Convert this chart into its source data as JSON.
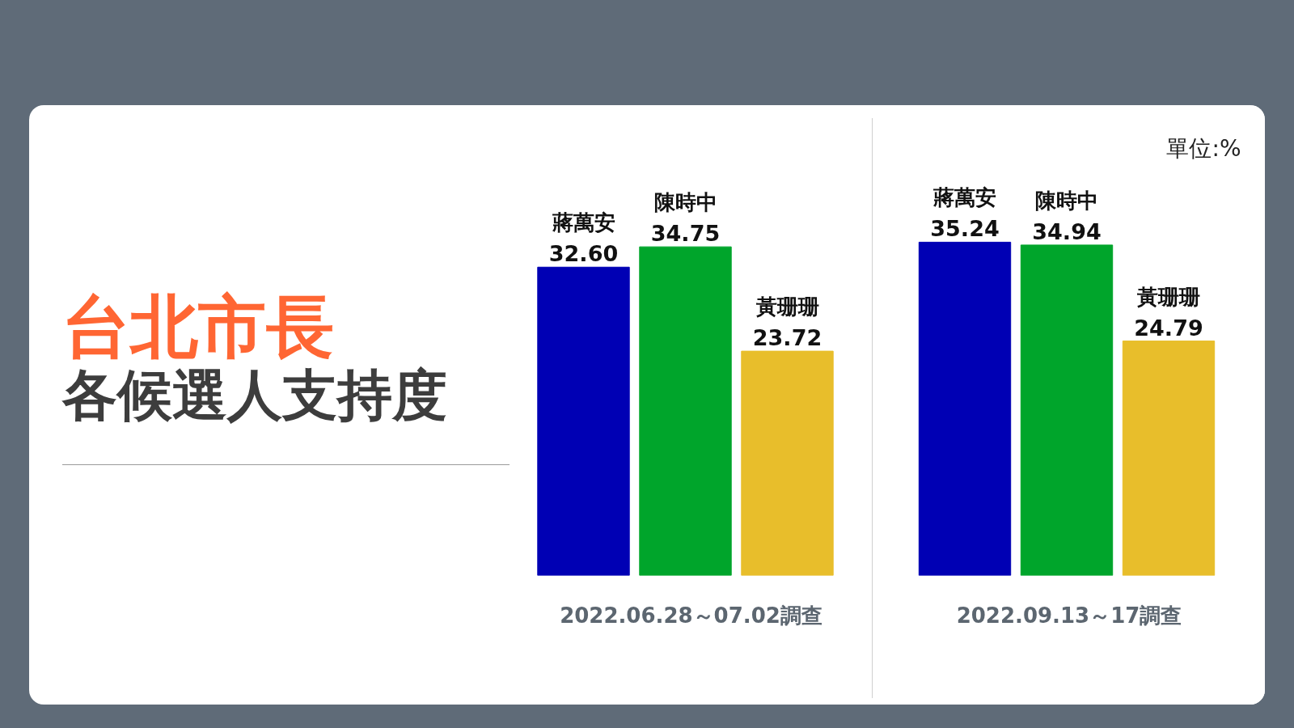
{
  "chart_data": [
    {
      "type": "bar",
      "title": "台北市長",
      "subtitle": "各候選人支持度",
      "xlabel": "2022.06.28～07.02調查",
      "categories": [
        "蔣萬安",
        "陳時中",
        "黃珊珊"
      ],
      "colors": [
        "#0000b4",
        "#00a52b",
        "#e8be2b"
      ],
      "values": [
        32.6,
        34.75,
        23.72
      ],
      "value_labels": [
        "32.60",
        "34.75",
        "23.72"
      ]
    },
    {
      "type": "bar",
      "xlabel": "2022.09.13～17調查",
      "annotations": [
        "單位:%"
      ],
      "categories": [
        "蔣萬安",
        "陳時中",
        "黃珊珊"
      ],
      "colors": [
        "#0000b4",
        "#00a52b",
        "#e8be2b"
      ],
      "values": [
        35.24,
        34.94,
        24.79
      ],
      "value_labels": [
        "35.24",
        "34.94",
        "24.79"
      ]
    }
  ]
}
